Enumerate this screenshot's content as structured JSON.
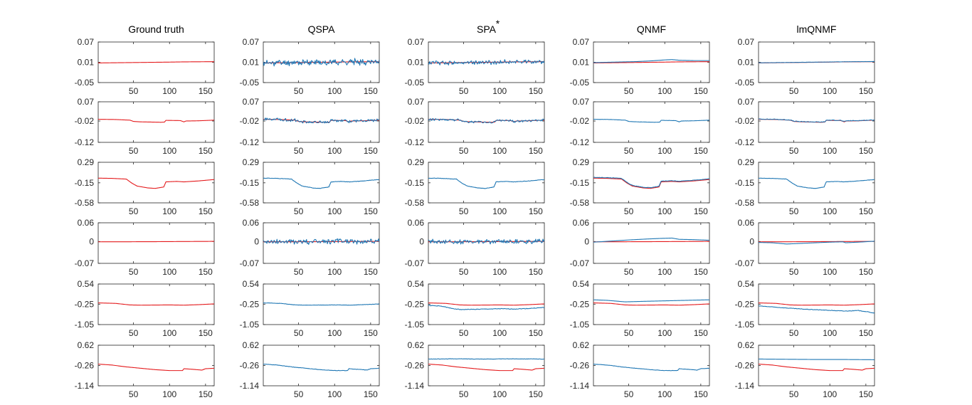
{
  "figure_colors": {
    "ground_truth": "#e41a1c",
    "estimate": "#1f77b4"
  },
  "chart_data": {
    "type": "line",
    "titles": [
      {
        "text": "Ground truth",
        "sup": ""
      },
      {
        "text": "QSPA",
        "sup": ""
      },
      {
        "text": "SPA",
        "sup": "*"
      },
      {
        "text": "QNMF",
        "sup": ""
      },
      {
        "text": "lmQNMF",
        "sup": ""
      }
    ],
    "x_range": [
      1,
      162
    ],
    "x_ticks": [
      50,
      100,
      150
    ],
    "rows": [
      {
        "y_ticks": [
          {
            "value": 0.07,
            "label": "0.07"
          },
          {
            "value": 0.01,
            "label": "0.01"
          },
          {
            "value": -0.05,
            "label": "-0.05"
          }
        ],
        "truth": [
          [
            1,
            0.008
          ],
          [
            20,
            0.0085
          ],
          [
            40,
            0.009
          ],
          [
            60,
            0.0095
          ],
          [
            80,
            0.01
          ],
          [
            100,
            0.0105
          ],
          [
            120,
            0.0112
          ],
          [
            140,
            0.0115
          ],
          [
            162,
            0.0118
          ]
        ],
        "panels": [
          {
            "red": true,
            "blue": null
          },
          {
            "red": true,
            "blue": {
              "kind": "noise",
              "amp": 0.007,
              "seed": 11
            }
          },
          {
            "red": true,
            "blue": {
              "kind": "noise",
              "amp": 0.005,
              "seed": 12
            }
          },
          {
            "red": true,
            "blue": {
              "kind": "points",
              "pts": [
                [
                  1,
                  0.009
                ],
                [
                  20,
                  0.01
                ],
                [
                  40,
                  0.011
                ],
                [
                  60,
                  0.012
                ],
                [
                  80,
                  0.014
                ],
                [
                  100,
                  0.017
                ],
                [
                  110,
                  0.018
                ],
                [
                  120,
                  0.016
                ],
                [
                  140,
                  0.015
                ],
                [
                  162,
                  0.015
                ]
              ]
            }
          },
          {
            "red": true,
            "blue": {
              "kind": "offset",
              "offset": 0.0004,
              "amp": 0.0003,
              "seed": 13
            }
          }
        ]
      },
      {
        "y_ticks": [
          {
            "value": 0.07,
            "label": "0.07"
          },
          {
            "value": -0.02,
            "label": "-0.02"
          },
          {
            "value": -0.12,
            "label": "-0.12"
          }
        ],
        "truth": [
          [
            1,
            -0.012
          ],
          [
            25,
            -0.013
          ],
          [
            45,
            -0.016
          ],
          [
            50,
            -0.022
          ],
          [
            60,
            -0.024
          ],
          [
            75,
            -0.025
          ],
          [
            88,
            -0.026
          ],
          [
            93,
            -0.025
          ],
          [
            95,
            -0.017
          ],
          [
            115,
            -0.018
          ],
          [
            120,
            -0.024
          ],
          [
            123,
            -0.02
          ],
          [
            140,
            -0.019
          ],
          [
            162,
            -0.016
          ]
        ],
        "panels": [
          {
            "red": true,
            "blue": null
          },
          {
            "red": true,
            "blue": {
              "kind": "noise",
              "amp": 0.005,
              "seed": 21
            }
          },
          {
            "red": true,
            "blue": {
              "kind": "noise",
              "amp": 0.004,
              "seed": 22
            }
          },
          {
            "red": false,
            "blue": {
              "kind": "offset",
              "offset": 0.0,
              "amp": 0.0004,
              "seed": 23
            }
          },
          {
            "red": true,
            "blue": {
              "kind": "offset",
              "offset": 0.001,
              "amp": 0.0015,
              "seed": 24
            }
          }
        ]
      },
      {
        "y_ticks": [
          {
            "value": 0.29,
            "label": "0.29"
          },
          {
            "value": -0.15,
            "label": "-0.15"
          },
          {
            "value": -0.58,
            "label": "-0.58"
          }
        ],
        "truth": [
          [
            1,
            -0.05
          ],
          [
            20,
            -0.055
          ],
          [
            40,
            -0.07
          ],
          [
            48,
            -0.16
          ],
          [
            55,
            -0.22
          ],
          [
            70,
            -0.26
          ],
          [
            80,
            -0.27
          ],
          [
            88,
            -0.25
          ],
          [
            92,
            -0.24
          ],
          [
            95,
            -0.13
          ],
          [
            110,
            -0.12
          ],
          [
            120,
            -0.13
          ],
          [
            140,
            -0.11
          ],
          [
            162,
            -0.08
          ]
        ],
        "panels": [
          {
            "red": true,
            "blue": null
          },
          {
            "red": false,
            "blue": {
              "kind": "offset",
              "offset": 0.0,
              "amp": 0.004,
              "seed": 31
            }
          },
          {
            "red": false,
            "blue": {
              "kind": "offset",
              "offset": 0.0,
              "amp": 0.004,
              "seed": 32
            }
          },
          {
            "red": true,
            "blue": {
              "kind": "offset",
              "offset": 0.015,
              "amp": 0.005,
              "seed": 33
            }
          },
          {
            "red": false,
            "blue": {
              "kind": "offset",
              "offset": 0.0,
              "amp": 0.003,
              "seed": 34
            }
          }
        ]
      },
      {
        "y_ticks": [
          {
            "value": 0.06,
            "label": "0.06"
          },
          {
            "value": 0,
            "label": "0"
          },
          {
            "value": -0.07,
            "label": "-0.07"
          }
        ],
        "truth": [
          [
            1,
            -0.001
          ],
          [
            40,
            -0.0008
          ],
          [
            80,
            -0.0005
          ],
          [
            120,
            0.0
          ],
          [
            162,
            0.0005
          ]
        ],
        "panels": [
          {
            "red": true,
            "blue": null
          },
          {
            "red": true,
            "blue": {
              "kind": "noise",
              "amp": 0.007,
              "seed": 41
            }
          },
          {
            "red": true,
            "blue": {
              "kind": "noise",
              "amp": 0.006,
              "seed": 42
            }
          },
          {
            "red": true,
            "blue": {
              "kind": "points",
              "pts": [
                [
                  1,
                  -0.002
                ],
                [
                  30,
                  0.002
                ],
                [
                  50,
                  0.005
                ],
                [
                  75,
                  0.008
                ],
                [
                  95,
                  0.01
                ],
                [
                  110,
                  0.011
                ],
                [
                  120,
                  0.007
                ],
                [
                  140,
                  0.006
                ],
                [
                  162,
                  0.004
                ]
              ]
            }
          },
          {
            "red": true,
            "blue": {
              "kind": "points",
              "pts": [
                [
                  1,
                  -0.003
                ],
                [
                  20,
                  -0.004
                ],
                [
                  40,
                  -0.008
                ],
                [
                  60,
                  -0.006
                ],
                [
                  80,
                  -0.004
                ],
                [
                  100,
                  -0.002
                ],
                [
                  118,
                  -0.001
                ],
                [
                  122,
                  -0.004
                ],
                [
                  140,
                  -0.002
                ],
                [
                  162,
                  0.001
                ]
              ]
            }
          }
        ]
      },
      {
        "y_ticks": [
          {
            "value": 0.54,
            "label": "0.54"
          },
          {
            "value": -0.25,
            "label": "-0.25"
          },
          {
            "value": -1.05,
            "label": "-1.05"
          }
        ],
        "truth": [
          [
            1,
            -0.2
          ],
          [
            25,
            -0.22
          ],
          [
            45,
            -0.28
          ],
          [
            60,
            -0.29
          ],
          [
            100,
            -0.28
          ],
          [
            120,
            -0.29
          ],
          [
            140,
            -0.27
          ],
          [
            162,
            -0.24
          ]
        ],
        "panels": [
          {
            "red": true,
            "blue": null
          },
          {
            "red": false,
            "blue": {
              "kind": "offset",
              "offset": 0.0,
              "amp": 0.006,
              "seed": 51
            }
          },
          {
            "red": true,
            "blue": {
              "kind": "points",
              "pts": [
                [
                  1,
                  -0.3
                ],
                [
                  20,
                  -0.33
                ],
                [
                  30,
                  -0.4
                ],
                [
                  45,
                  -0.46
                ],
                [
                  70,
                  -0.45
                ],
                [
                  100,
                  -0.43
                ],
                [
                  120,
                  -0.44
                ],
                [
                  140,
                  -0.42
                ],
                [
                  162,
                  -0.38
                ]
              ],
              "noise": 0.012,
              "seed": 52
            }
          },
          {
            "red": true,
            "blue": {
              "kind": "points",
              "pts": [
                [
                  1,
                  -0.08
                ],
                [
                  20,
                  -0.1
                ],
                [
                  45,
                  -0.16
                ],
                [
                  70,
                  -0.14
                ],
                [
                  100,
                  -0.12
                ],
                [
                  130,
                  -0.1
                ],
                [
                  162,
                  -0.08
                ]
              ]
            }
          },
          {
            "red": true,
            "blue": {
              "kind": "points",
              "pts": [
                [
                  1,
                  -0.32
                ],
                [
                  30,
                  -0.38
                ],
                [
                  60,
                  -0.44
                ],
                [
                  90,
                  -0.48
                ],
                [
                  120,
                  -0.52
                ],
                [
                  140,
                  -0.5
                ],
                [
                  150,
                  -0.54
                ],
                [
                  162,
                  -0.6
                ]
              ],
              "noise": 0.01,
              "seed": 54
            }
          }
        ]
      },
      {
        "y_ticks": [
          {
            "value": 0.62,
            "label": "0.62"
          },
          {
            "value": -0.26,
            "label": "-0.26"
          },
          {
            "value": -1.14,
            "label": "-1.14"
          }
        ],
        "truth": [
          [
            1,
            -0.2
          ],
          [
            20,
            -0.24
          ],
          [
            40,
            -0.32
          ],
          [
            60,
            -0.38
          ],
          [
            80,
            -0.44
          ],
          [
            100,
            -0.48
          ],
          [
            118,
            -0.48
          ],
          [
            120,
            -0.4
          ],
          [
            130,
            -0.42
          ],
          [
            145,
            -0.46
          ],
          [
            150,
            -0.4
          ],
          [
            162,
            -0.38
          ]
        ],
        "panels": [
          {
            "red": true,
            "blue": null
          },
          {
            "red": false,
            "blue": {
              "kind": "offset",
              "offset": 0.0,
              "amp": 0.008,
              "seed": 61
            }
          },
          {
            "red": true,
            "blue": {
              "kind": "points",
              "pts": [
                [
                  1,
                  0.02
                ],
                [
                  40,
                  0.03
                ],
                [
                  80,
                  0.02
                ],
                [
                  120,
                  0.03
                ],
                [
                  162,
                  0.02
                ]
              ],
              "noise": 0.008,
              "seed": 62
            }
          },
          {
            "red": false,
            "blue": {
              "kind": "offset",
              "offset": 0.0,
              "amp": 0.006,
              "seed": 63
            }
          },
          {
            "red": true,
            "blue": {
              "kind": "points",
              "pts": [
                [
                  1,
                  0.02
                ],
                [
                  40,
                  0.01
                ],
                [
                  80,
                  0.0
                ],
                [
                  120,
                  0.0
                ],
                [
                  162,
                  -0.01
                ]
              ]
            }
          }
        ]
      }
    ]
  }
}
